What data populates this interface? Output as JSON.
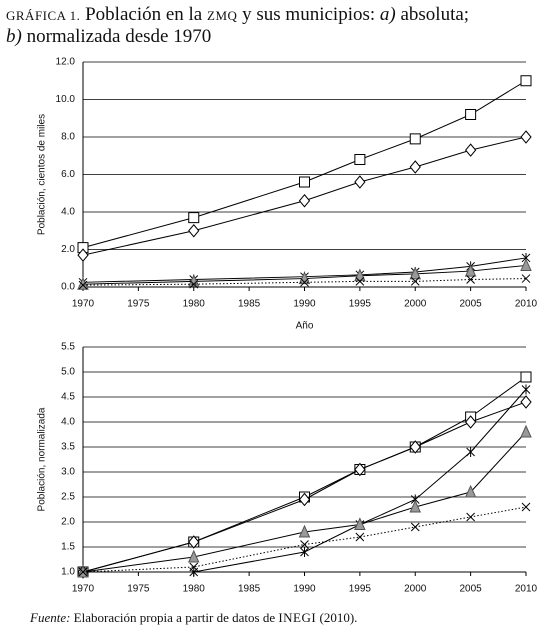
{
  "figure": {
    "title": [
      "GRÁFICA 1.",
      " Población en la ",
      "ZMQ",
      " y sus municipios: ",
      "a)",
      " absoluta;",
      "b)",
      " normalizada desde 1970"
    ],
    "source": [
      "Fuente:",
      " Elaboración propia a partir de datos de ",
      "INEGI",
      " (2010)."
    ]
  },
  "chart_data": [
    {
      "type": "line",
      "x_label": "Año",
      "y_label": "Población, cientos de miles",
      "x": [
        1970,
        1980,
        1990,
        1995,
        2000,
        2005,
        2010
      ],
      "xlim": [
        1970,
        2010
      ],
      "xticks": [
        1970,
        1975,
        1980,
        1985,
        1990,
        1995,
        2000,
        2005,
        2010
      ],
      "ylim": [
        0,
        12
      ],
      "yticks": [
        {
          "value": 0,
          "label": "0.0"
        },
        {
          "value": 2,
          "label": "2.0"
        },
        {
          "value": 4,
          "label": "4.0"
        },
        {
          "value": 6,
          "label": "6.0"
        },
        {
          "value": 8,
          "label": "8.0"
        },
        {
          "value": 10,
          "label": "10.0"
        },
        {
          "value": 12,
          "label": "12.0"
        }
      ],
      "grid": true,
      "series": [
        {
          "color": "#000",
          "marker": "square",
          "marker_fill": "#fff",
          "dash": "solid",
          "values": [
            2.1,
            3.7,
            5.6,
            6.8,
            7.9,
            9.2,
            11.0
          ]
        },
        {
          "color": "#000",
          "marker": "diamond",
          "marker_fill": "#fff",
          "dash": "solid",
          "values": [
            1.7,
            3.0,
            4.6,
            5.6,
            6.4,
            7.3,
            8.0
          ]
        },
        {
          "color": "#000",
          "marker": "asterisk",
          "marker_fill": "#fff",
          "dash": "solid",
          "values": [
            0.25,
            0.4,
            0.55,
            0.65,
            0.8,
            1.1,
            1.55
          ]
        },
        {
          "color": "#000",
          "marker": "triangle",
          "marker_fill": "#999",
          "dash": "solid",
          "values": [
            0.15,
            0.3,
            0.45,
            0.6,
            0.7,
            0.85,
            1.15
          ]
        },
        {
          "color": "#000",
          "marker": "x",
          "marker_fill": "#fff",
          "dash": "dotted",
          "values": [
            0.1,
            0.15,
            0.25,
            0.3,
            0.3,
            0.4,
            0.45
          ]
        }
      ]
    },
    {
      "type": "line",
      "y_label": "Población, normalizada",
      "x": [
        1970,
        1980,
        1990,
        1995,
        2000,
        2005,
        2010
      ],
      "xlim": [
        1970,
        2010
      ],
      "xticks": [
        1970,
        1975,
        1980,
        1985,
        1990,
        1995,
        2000,
        2005,
        2010
      ],
      "ylim": [
        1,
        5.5
      ],
      "yticks": [
        {
          "value": 1,
          "label": "1.0"
        },
        1.5,
        {
          "value": 2,
          "label": "2.0"
        },
        2.5,
        {
          "value": 3,
          "label": "3.0"
        },
        3.5,
        {
          "value": 4,
          "label": "4.0"
        },
        4.5,
        {
          "value": 5,
          "label": "5.0"
        },
        5.5
      ],
      "grid": true,
      "series": [
        {
          "color": "#000",
          "marker": "square",
          "marker_fill": "#fff",
          "dash": "solid",
          "values": [
            1.0,
            1.6,
            2.5,
            3.05,
            3.5,
            4.1,
            4.9
          ]
        },
        {
          "color": "#000",
          "marker": "diamond",
          "marker_fill": "#fff",
          "dash": "solid",
          "values": [
            1.0,
            1.6,
            2.45,
            3.05,
            3.5,
            4.0,
            4.4
          ]
        },
        {
          "color": "#000",
          "marker": "asterisk",
          "marker_fill": "#fff",
          "dash": "solid",
          "values": [
            1.0,
            1.0,
            1.4,
            1.95,
            2.45,
            3.4,
            4.65
          ]
        },
        {
          "color": "#000",
          "marker": "triangle",
          "marker_fill": "#999",
          "dash": "solid",
          "values": [
            1.0,
            1.3,
            1.8,
            1.95,
            2.3,
            2.6,
            3.8
          ]
        },
        {
          "color": "#000",
          "marker": "x",
          "marker_fill": "#fff",
          "dash": "dotted",
          "values": [
            1.0,
            1.1,
            1.55,
            1.7,
            1.9,
            2.1,
            2.3
          ]
        }
      ]
    }
  ]
}
